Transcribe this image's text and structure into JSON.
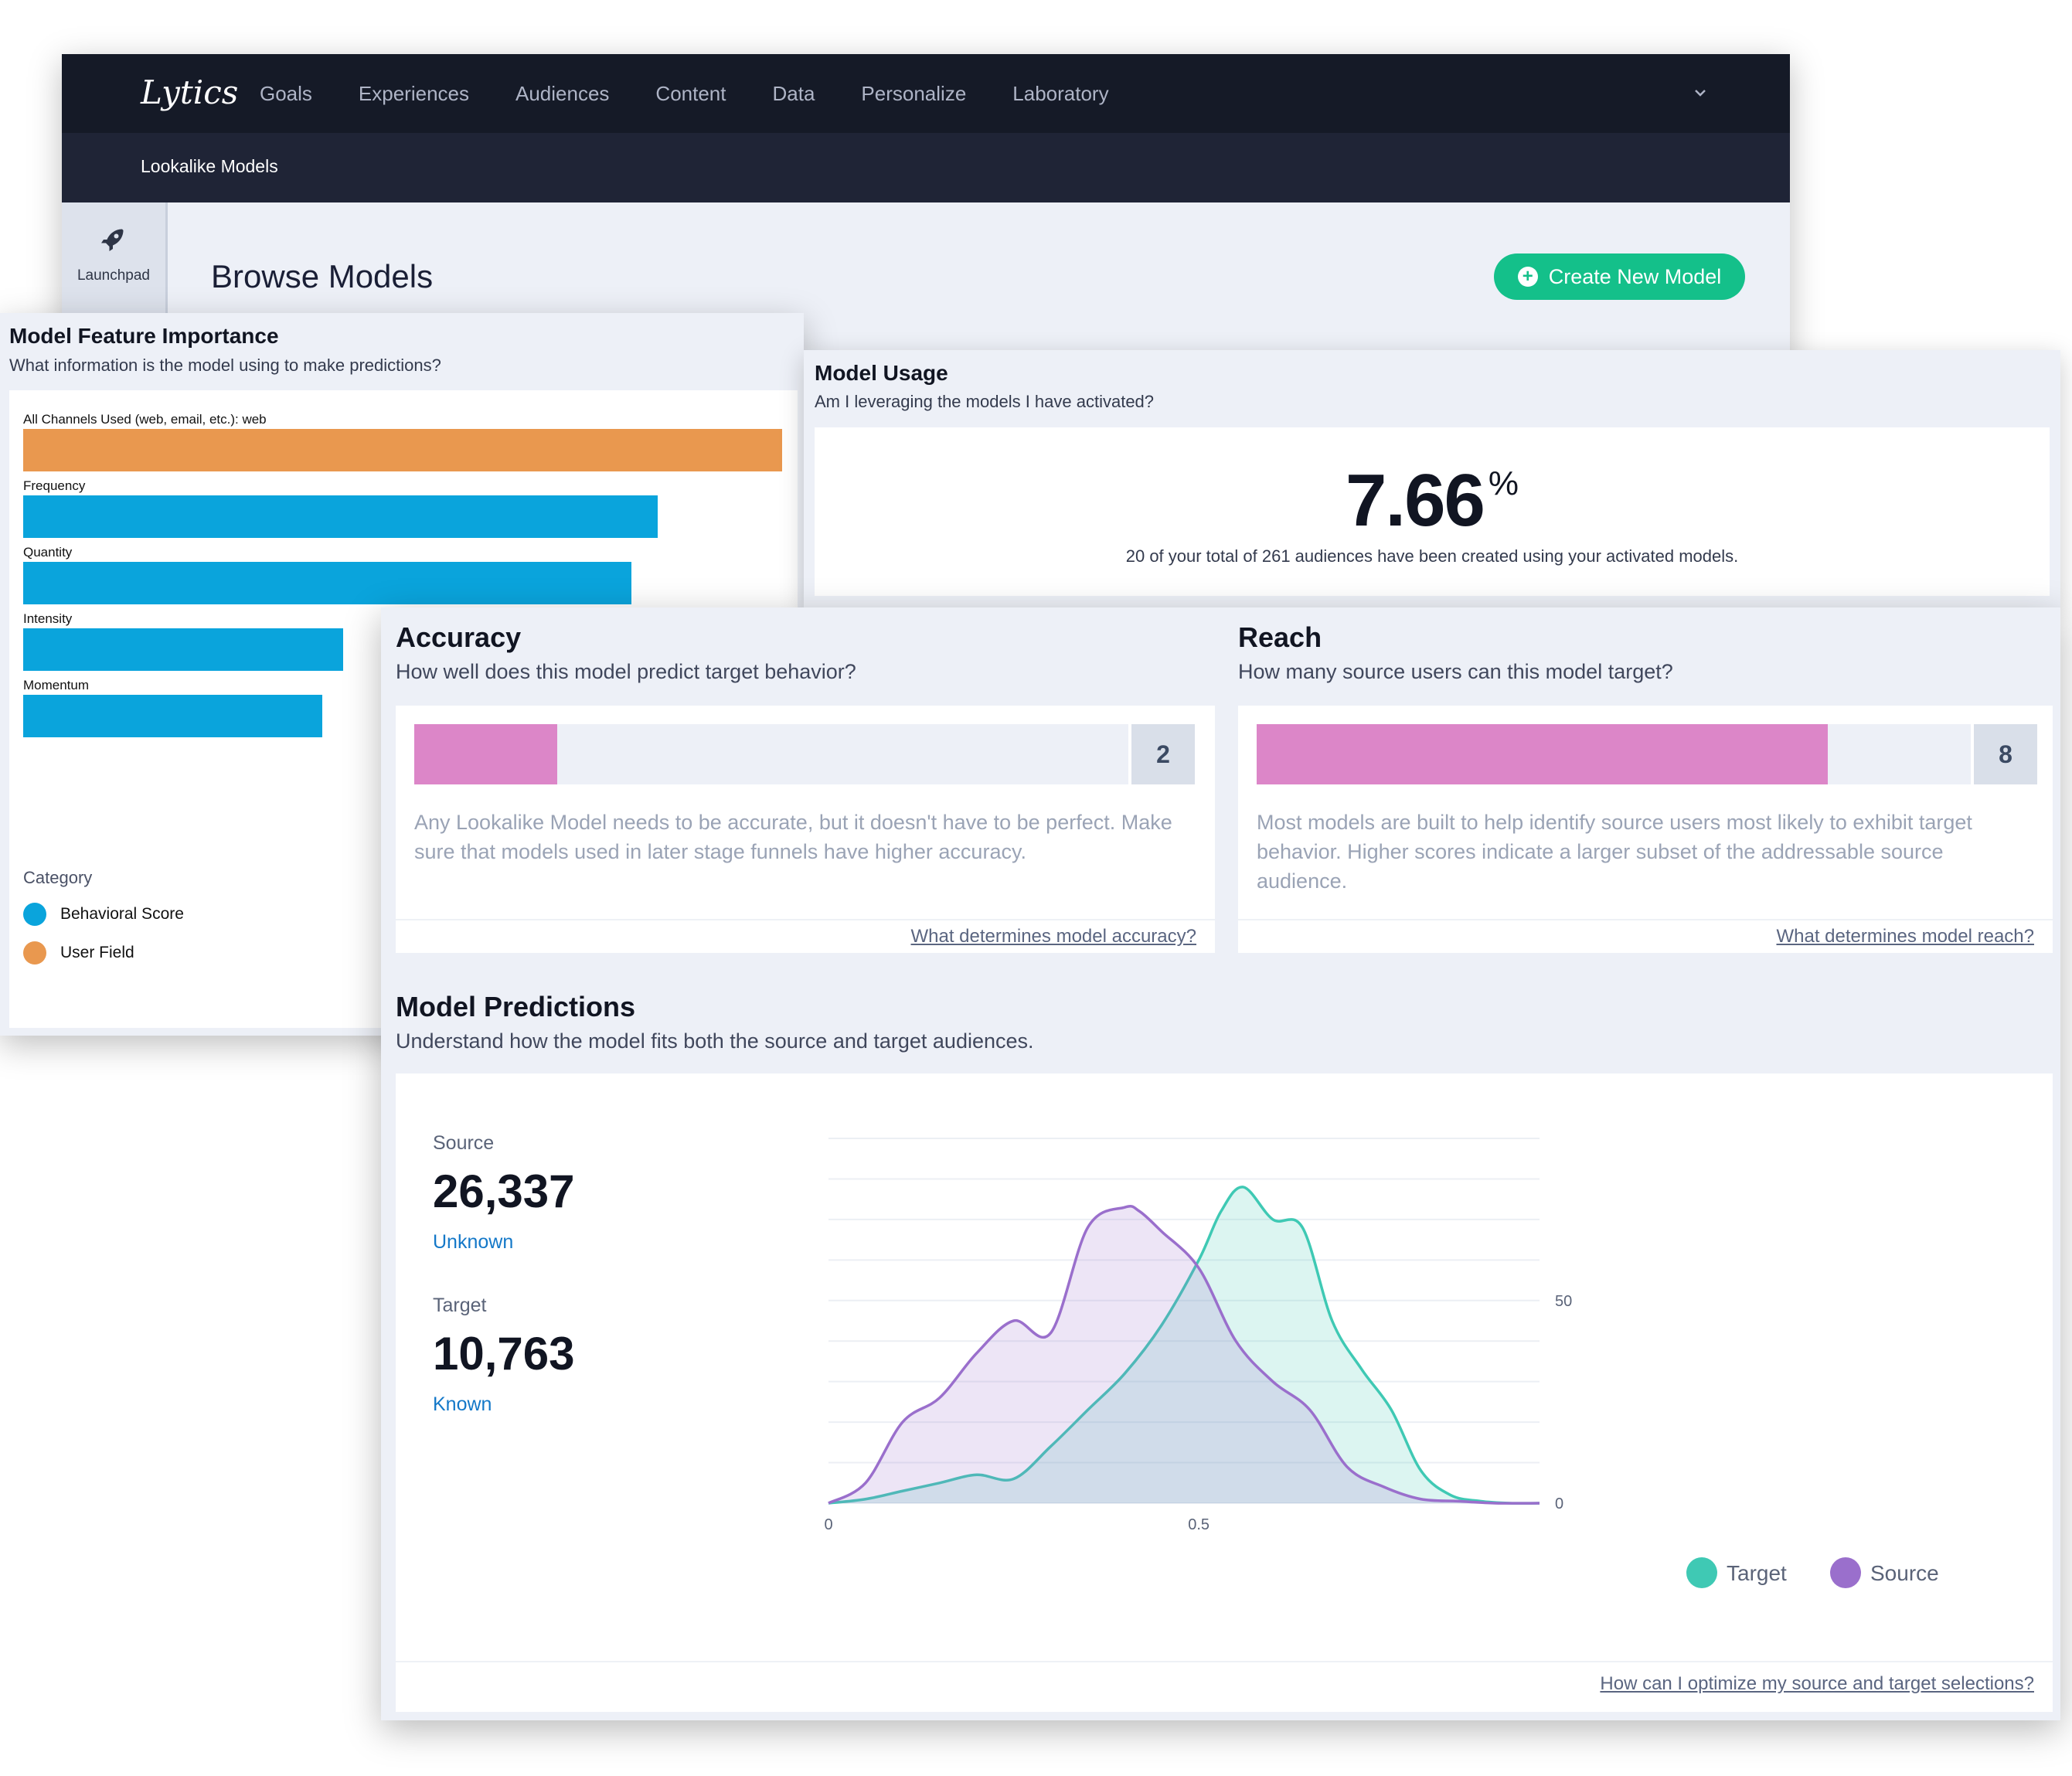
{
  "nav": {
    "logo": "Lytics",
    "items": [
      "Goals",
      "Experiences",
      "Audiences",
      "Content",
      "Data",
      "Personalize",
      "Laboratory"
    ]
  },
  "subnav": {
    "title": "Lookalike Models"
  },
  "sidebar": {
    "launchpad_label": "Launchpad"
  },
  "page": {
    "title": "Browse Models",
    "create_button": "Create New Model"
  },
  "feature_importance": {
    "title": "Model Feature Importance",
    "subtitle": "What information is the model using to make predictions?",
    "features": [
      {
        "label": "All Channels Used (web, email, etc.): web",
        "value": 1.0,
        "category": "user"
      },
      {
        "label": "Frequency",
        "value": 0.836,
        "category": "behavioral"
      },
      {
        "label": "Quantity",
        "value": 0.801,
        "category": "behavioral"
      },
      {
        "label": "Intensity",
        "value": 0.422,
        "category": "behavioral"
      },
      {
        "label": "Momentum",
        "value": 0.394,
        "category": "behavioral"
      }
    ],
    "legend_title": "Category",
    "legend": [
      {
        "label": "Behavioral Score",
        "color": "#0aa4dc"
      },
      {
        "label": "User Field",
        "color": "#e9984f"
      }
    ]
  },
  "usage": {
    "title": "Model Usage",
    "subtitle": "Am I leveraging the models I have activated?",
    "value": "7.66",
    "unit": "%",
    "description": "20 of your total of 261 audiences have been created using your activated models."
  },
  "accuracy": {
    "title": "Accuracy",
    "subtitle": "How well does this model predict target behavior?",
    "score": "2",
    "fill": 0.2,
    "text": "Any Lookalike Model needs to be accurate, but it doesn't have to be perfect. Make sure that models used in later stage funnels have higher accuracy.",
    "link": "What determines model accuracy?"
  },
  "reach": {
    "title": "Reach",
    "subtitle": "How many source users can this model target?",
    "score": "8",
    "fill": 0.8,
    "text": "Most models are built to help identify source users most likely to exhibit target behavior. Higher scores indicate a larger subset of the addressable source audience.",
    "link": "What determines model reach?"
  },
  "predictions": {
    "title": "Model Predictions",
    "subtitle": "Understand how the model fits both the source and target audiences.",
    "source_label": "Source",
    "source_value": "26,337",
    "source_tag": "Unknown",
    "target_label": "Target",
    "target_value": "10,763",
    "target_tag": "Known",
    "link": "How can I optimize my source and target selections?"
  },
  "chart_data": {
    "type": "area",
    "x_range": [
      0,
      0.96
    ],
    "y_range": [
      0,
      90
    ],
    "x_ticks": [
      0,
      0.5
    ],
    "y_ticks": [
      0,
      50
    ],
    "grid": true,
    "legend_position": "bottom-right",
    "series": [
      {
        "name": "Target",
        "color": "#3fc9b4",
        "x": [
          0,
          0.05,
          0.1,
          0.15,
          0.2,
          0.25,
          0.3,
          0.35,
          0.4,
          0.45,
          0.5,
          0.53,
          0.56,
          0.6,
          0.64,
          0.68,
          0.72,
          0.76,
          0.8,
          0.84,
          0.88,
          0.92,
          0.96
        ],
        "y": [
          0,
          1,
          3,
          5,
          7,
          6,
          14,
          23,
          32,
          44,
          60,
          72,
          78,
          70,
          68,
          45,
          33,
          23,
          8,
          2,
          0.5,
          0,
          0
        ]
      },
      {
        "name": "Source",
        "color": "#9a6fcc",
        "x": [
          0,
          0.05,
          0.1,
          0.15,
          0.2,
          0.25,
          0.3,
          0.35,
          0.4,
          0.42,
          0.45,
          0.5,
          0.55,
          0.6,
          0.65,
          0.7,
          0.75,
          0.8,
          0.85,
          0.9,
          0.96
        ],
        "y": [
          0,
          5,
          20,
          26,
          37,
          45,
          42,
          68,
          73,
          72,
          67,
          58,
          40,
          30,
          23,
          9,
          4,
          1,
          0.5,
          0,
          0
        ]
      }
    ]
  }
}
